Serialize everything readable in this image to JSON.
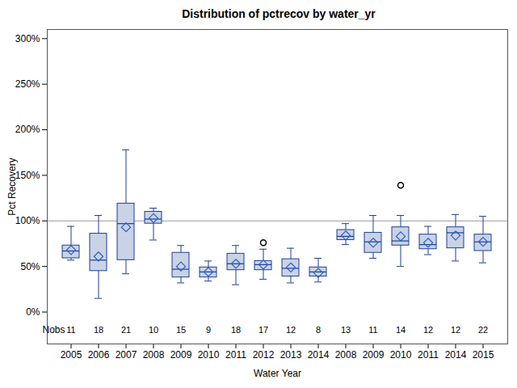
{
  "chart_data": {
    "type": "box",
    "title": "Distribution of pctrecov by water_yr",
    "x_label": "Water Year",
    "y_label": "Pct Recovery",
    "nobs_label": "Nobs",
    "color": "#c9d3e6",
    "categories": [
      "2005",
      "2006",
      "2007",
      "2008",
      "2009",
      "2010",
      "2011",
      "2012",
      "2013",
      "2014",
      "2008",
      "2009",
      "2010",
      "2011",
      "2014",
      "2015"
    ],
    "min": [
      57,
      15,
      42,
      79,
      32,
      34,
      30,
      36,
      32,
      33,
      74,
      59,
      50,
      63,
      56,
      54
    ],
    "q1": [
      59,
      45,
      57,
      97,
      38,
      38,
      46,
      46,
      39,
      39,
      79,
      65,
      73,
      69,
      70,
      67
    ],
    "median": [
      67,
      57,
      97,
      102,
      47,
      44,
      53,
      52,
      48,
      44,
      83,
      77,
      78,
      74,
      87,
      77
    ],
    "q3": [
      73,
      86,
      119,
      110,
      65,
      49,
      64,
      56,
      58,
      49,
      90,
      87,
      93,
      85,
      93,
      85
    ],
    "max": [
      94,
      106,
      178,
      114,
      73,
      56,
      73,
      69,
      70,
      59,
      97,
      106,
      106,
      94,
      107,
      105
    ],
    "mean": [
      68,
      61,
      93,
      103,
      50,
      44,
      53,
      52,
      49,
      43,
      84,
      76,
      83,
      76,
      84,
      77
    ],
    "outliers": [
      [],
      [],
      [],
      [],
      [],
      [],
      [],
      [
        76
      ],
      [],
      [],
      [],
      [],
      [
        139
      ],
      [],
      [],
      []
    ],
    "nobs": [
      11,
      18,
      21,
      10,
      15,
      9,
      18,
      17,
      12,
      8,
      13,
      11,
      14,
      12,
      12,
      22
    ],
    "reference_line": 100,
    "ylim": [
      -35,
      310
    ],
    "yticks": [
      {
        "value": 0,
        "label": "0%"
      },
      {
        "value": 50,
        "label": "50%"
      },
      {
        "value": 100,
        "label": "100%"
      },
      {
        "value": 150,
        "label": "150%"
      },
      {
        "value": 200,
        "label": "200%"
      },
      {
        "value": 250,
        "label": "250%"
      },
      {
        "value": 300,
        "label": "300%"
      }
    ]
  }
}
